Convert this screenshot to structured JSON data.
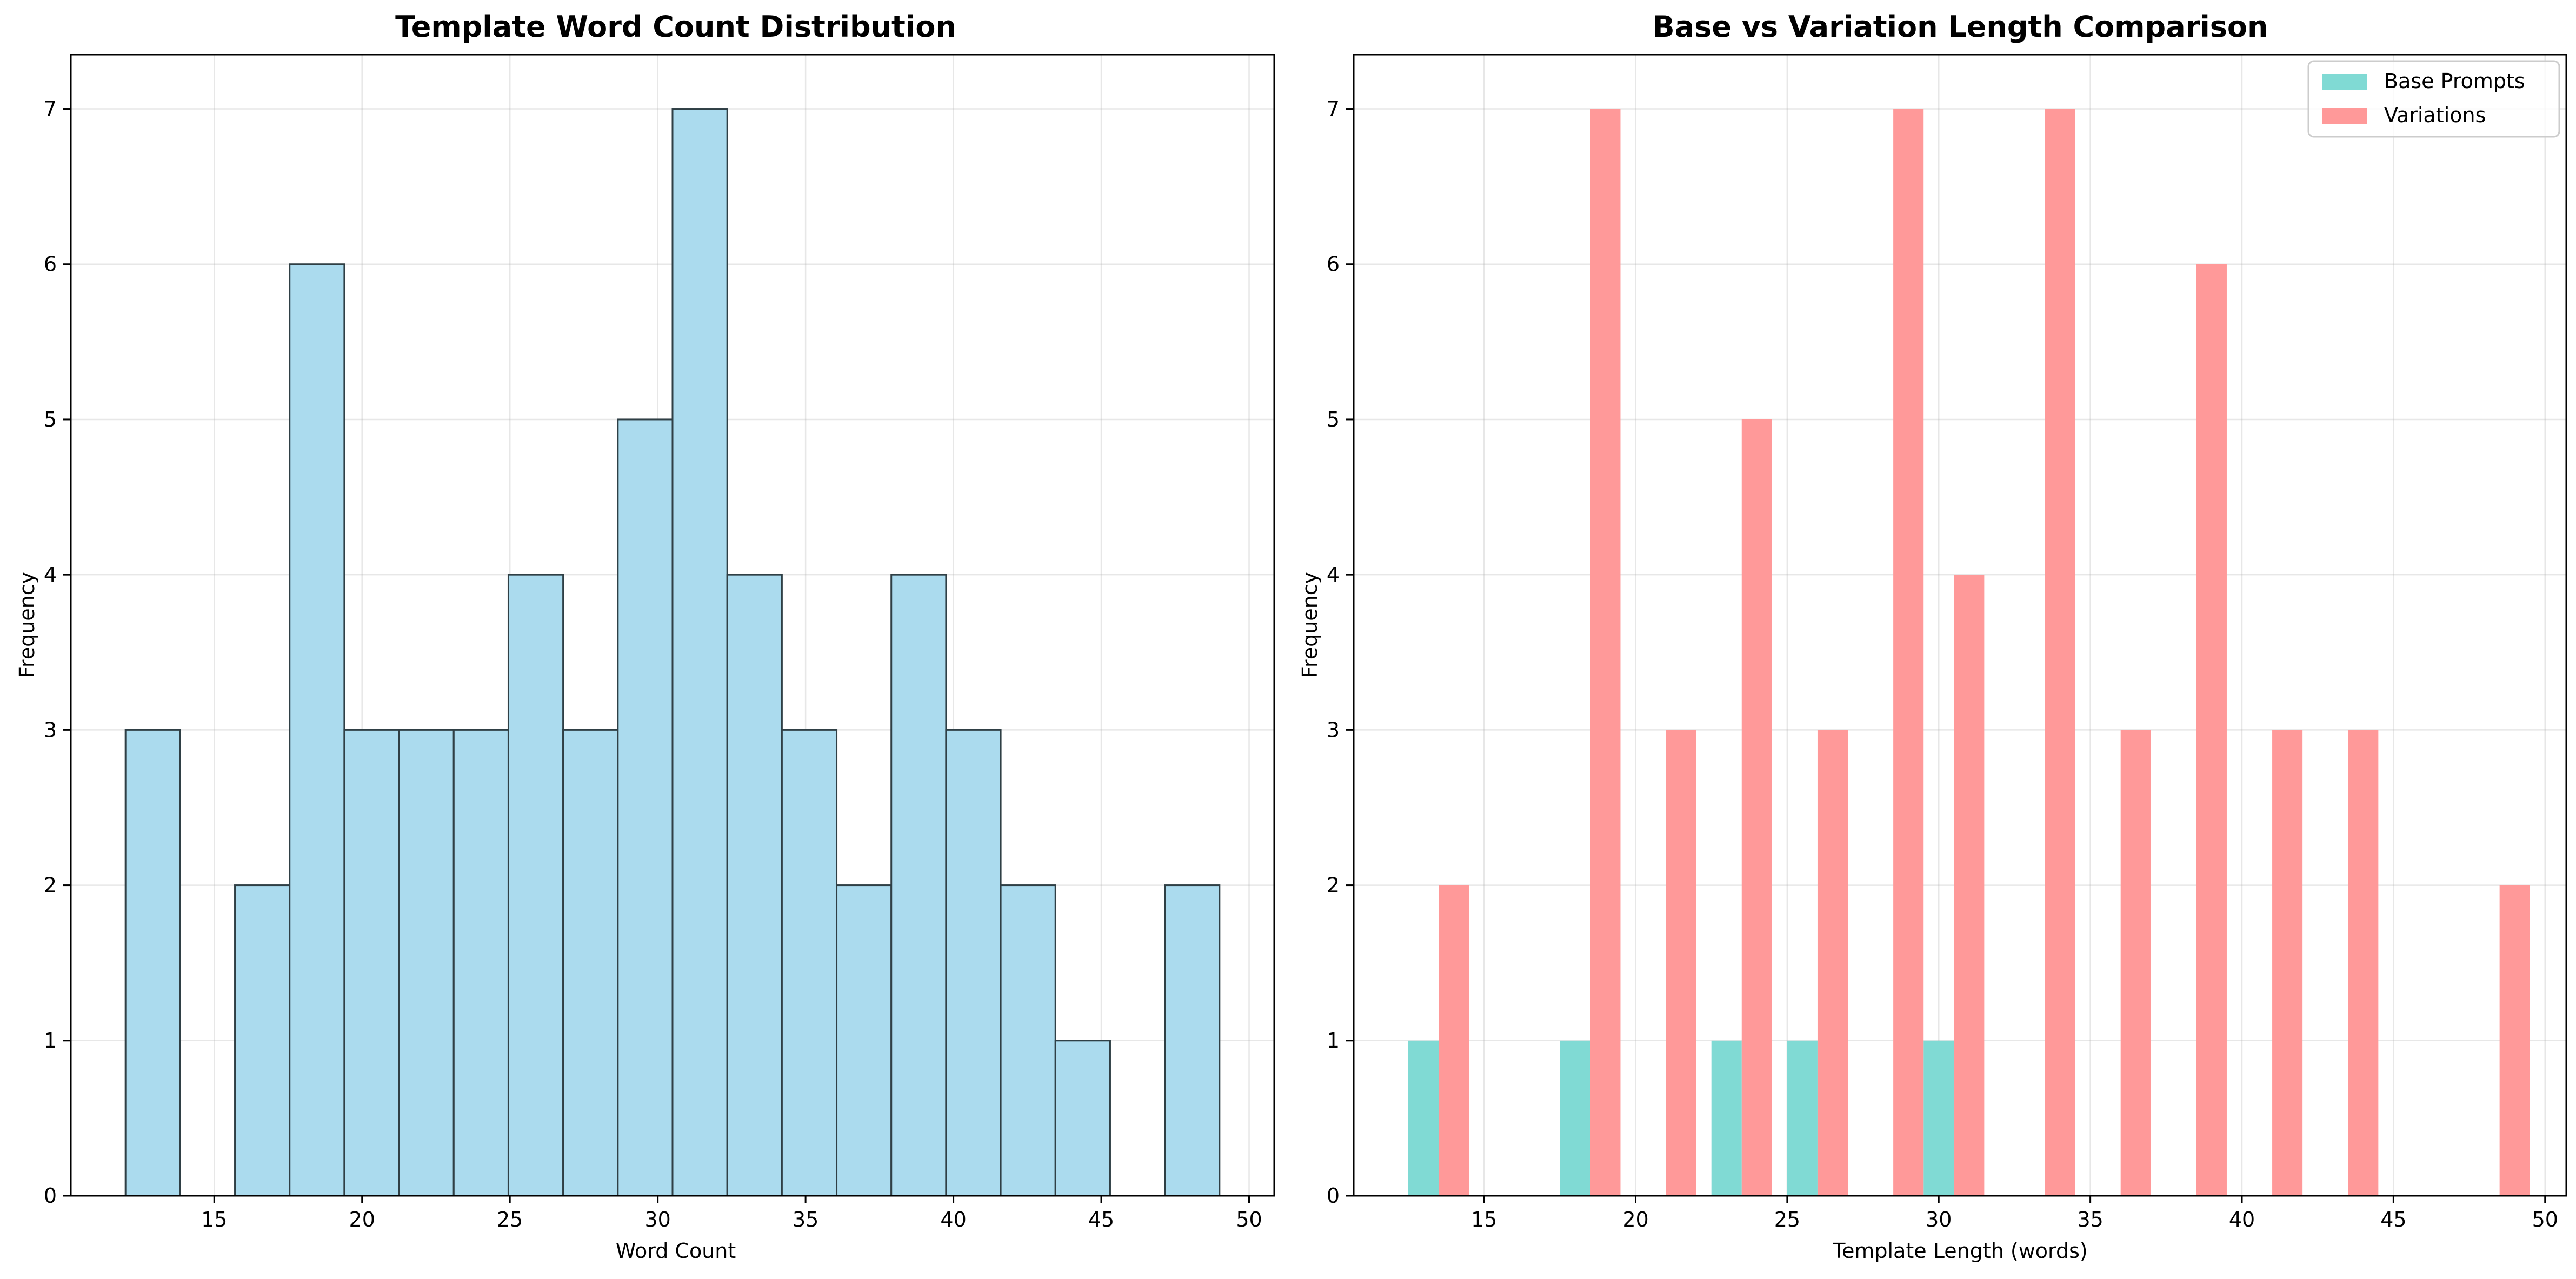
{
  "chart_data": [
    {
      "type": "bar",
      "title": "Template Word Count Distribution",
      "xlabel": "Word Count",
      "ylabel": "Frequency",
      "xlim": [
        10.15,
        50.85
      ],
      "ylim": [
        0,
        7.35
      ],
      "xticks": [
        15,
        20,
        25,
        30,
        35,
        40,
        45,
        50
      ],
      "yticks": [
        0,
        1,
        2,
        3,
        4,
        5,
        6,
        7
      ],
      "grid": true,
      "colors": {
        "fill": "#ABDBEE",
        "edge": "#2F3F45"
      },
      "bins": [
        {
          "x0": 12.0,
          "x1": 13.85,
          "count": 3
        },
        {
          "x0": 13.85,
          "x1": 15.7,
          "count": 0
        },
        {
          "x0": 15.7,
          "x1": 17.55,
          "count": 2
        },
        {
          "x0": 17.55,
          "x1": 19.4,
          "count": 6
        },
        {
          "x0": 19.4,
          "x1": 21.25,
          "count": 3
        },
        {
          "x0": 21.25,
          "x1": 23.1,
          "count": 3
        },
        {
          "x0": 23.1,
          "x1": 24.95,
          "count": 3
        },
        {
          "x0": 24.95,
          "x1": 26.8,
          "count": 4
        },
        {
          "x0": 26.8,
          "x1": 28.65,
          "count": 3
        },
        {
          "x0": 28.65,
          "x1": 30.5,
          "count": 5
        },
        {
          "x0": 30.5,
          "x1": 32.35,
          "count": 7
        },
        {
          "x0": 32.35,
          "x1": 34.2,
          "count": 4
        },
        {
          "x0": 34.2,
          "x1": 36.05,
          "count": 3
        },
        {
          "x0": 36.05,
          "x1": 37.9,
          "count": 2
        },
        {
          "x0": 37.9,
          "x1": 39.75,
          "count": 4
        },
        {
          "x0": 39.75,
          "x1": 41.6,
          "count": 3
        },
        {
          "x0": 41.6,
          "x1": 43.45,
          "count": 2
        },
        {
          "x0": 43.45,
          "x1": 45.3,
          "count": 1
        },
        {
          "x0": 45.3,
          "x1": 47.15,
          "count": 0
        },
        {
          "x0": 47.15,
          "x1": 49.0,
          "count": 2
        }
      ]
    },
    {
      "type": "bar",
      "title": "Base vs Variation Length Comparison",
      "xlabel": "Template Length (words)",
      "ylabel": "Frequency",
      "xlim": [
        10.7,
        50.7
      ],
      "ylim": [
        0,
        7.35
      ],
      "xticks": [
        15,
        20,
        25,
        30,
        35,
        40,
        45,
        50
      ],
      "yticks": [
        0,
        1,
        2,
        3,
        4,
        5,
        6,
        7
      ],
      "grid": true,
      "legend": "top-right",
      "series": [
        {
          "name": "Base Prompts",
          "color": "#80DAD4",
          "bars": [
            {
              "x0": 12.5,
              "x1": 13.5,
              "count": 1
            },
            {
              "x0": 17.5,
              "x1": 18.5,
              "count": 1
            },
            {
              "x0": 22.5,
              "x1": 23.5,
              "count": 1
            },
            {
              "x0": 25.0,
              "x1": 26.0,
              "count": 1
            },
            {
              "x0": 29.5,
              "x1": 30.5,
              "count": 1
            }
          ]
        },
        {
          "name": "Variations",
          "color": "#FF9999",
          "bars": [
            {
              "x0": 13.5,
              "x1": 14.5,
              "count": 2
            },
            {
              "x0": 18.5,
              "x1": 19.5,
              "count": 7
            },
            {
              "x0": 21.0,
              "x1": 22.0,
              "count": 3
            },
            {
              "x0": 23.5,
              "x1": 24.5,
              "count": 5
            },
            {
              "x0": 26.0,
              "x1": 27.0,
              "count": 3
            },
            {
              "x0": 28.5,
              "x1": 29.5,
              "count": 7
            },
            {
              "x0": 30.5,
              "x1": 31.5,
              "count": 4
            },
            {
              "x0": 33.5,
              "x1": 34.5,
              "count": 7
            },
            {
              "x0": 36.0,
              "x1": 37.0,
              "count": 3
            },
            {
              "x0": 38.5,
              "x1": 39.5,
              "count": 6
            },
            {
              "x0": 41.0,
              "x1": 42.0,
              "count": 3
            },
            {
              "x0": 43.5,
              "x1": 44.5,
              "count": 3
            },
            {
              "x0": 48.5,
              "x1": 49.5,
              "count": 2
            }
          ]
        }
      ]
    }
  ]
}
